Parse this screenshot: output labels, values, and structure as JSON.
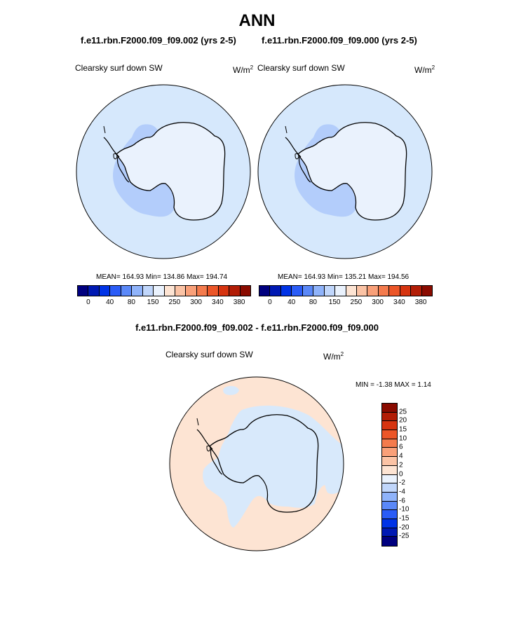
{
  "main_title": "ANN",
  "panels": [
    {
      "case": "f.e11.rbn.F2000.f09_f09.002 (yrs 2-5)",
      "variable": "Clearsky surf down SW",
      "unit_base": "W/m",
      "unit_exp": "2",
      "stats": "MEAN= 164.93  Min= 134.86  Max= 194.74"
    },
    {
      "case": "f.e11.rbn.F2000.f09_f09.000 (yrs 2-5)",
      "variable": "Clearsky surf down SW",
      "unit_base": "W/m",
      "unit_exp": "2",
      "stats": "MEAN= 164.93  Min= 135.21  Max= 194.56"
    }
  ],
  "diff_panel": {
    "title": "f.e11.rbn.F2000.f09_f09.002 - f.e11.rbn.F2000.f09_f09.000",
    "variable": "Clearsky surf down SW",
    "unit_base": "W/m",
    "unit_exp": "2",
    "stats": "MIN =  -1.38 MAX =   1.14"
  },
  "colorbar_abs": {
    "colors": [
      "#00007f",
      "#0019b3",
      "#0033e6",
      "#2a5cf7",
      "#5a88f8",
      "#8fb3fa",
      "#c0d6fb",
      "#eaf2fd",
      "#fde4d3",
      "#fbc3a5",
      "#f9a079",
      "#f47b4d",
      "#ec5628",
      "#d63410",
      "#b21d06",
      "#8a0b00"
    ],
    "ticks": [
      "0",
      "40",
      "80",
      "150",
      "250",
      "300",
      "340",
      "380"
    ]
  },
  "colorbar_diff": {
    "colors": [
      "#8a0b00",
      "#b21d06",
      "#d63410",
      "#ec5628",
      "#f47b4d",
      "#f9a079",
      "#fbc3a5",
      "#fde4d3",
      "#eaf2fd",
      "#c0d6fb",
      "#8fb3fa",
      "#5a88f8",
      "#2a5cf7",
      "#0033e6",
      "#0019b3",
      "#00007f"
    ],
    "ticks": [
      "25",
      "20",
      "15",
      "10",
      "6",
      "4",
      "2",
      "0",
      "-2",
      "-4",
      "-6",
      "-10",
      "-15",
      "-20",
      "-25"
    ]
  },
  "map_colors": {
    "ocean_light": "#d6e8fc",
    "ocean_mid": "#b3cdfb",
    "land_light": "#eaf2fd",
    "diff_pos": "#fde4d3",
    "diff_neg": "#d8e9fb"
  }
}
